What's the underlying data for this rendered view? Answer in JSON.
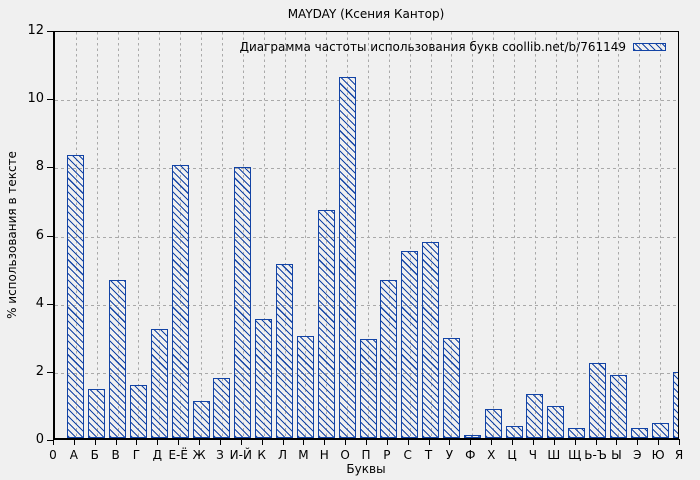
{
  "figure": {
    "background": "#f0f0f0"
  },
  "chart_data": {
    "type": "bar",
    "title": "MAYDAY (Ксения Кантор)",
    "legend_label": "Диаграмма частоты использования букв coollib.net/b/761149",
    "legend_position": "top-right-inside",
    "xlabel": "Буквы",
    "ylabel": "% использования в тексте",
    "origin_tick_label": "0",
    "ylim": [
      0,
      12
    ],
    "yticks": [
      0,
      2,
      4,
      6,
      8,
      10,
      12
    ],
    "grid": "dashed",
    "categories": [
      "А",
      "Б",
      "В",
      "Г",
      "Д",
      "Е-Ё",
      "Ж",
      "З",
      "И-Й",
      "К",
      "Л",
      "М",
      "Н",
      "О",
      "П",
      "Р",
      "С",
      "Т",
      "У",
      "Ф",
      "Х",
      "Ц",
      "Ч",
      "Ш",
      "Щ",
      "Ь-Ъ",
      "Ы",
      "Э",
      "Ю",
      "Я"
    ],
    "values": [
      8.3,
      1.45,
      4.65,
      1.55,
      3.2,
      8.0,
      1.1,
      1.75,
      7.95,
      3.5,
      5.1,
      3.0,
      6.7,
      10.6,
      2.9,
      4.65,
      5.5,
      5.75,
      2.95,
      0.1,
      0.85,
      0.35,
      1.3,
      0.95,
      0.3,
      2.2,
      1.85,
      0.3,
      0.45,
      1.95
    ],
    "colors": {
      "bar_outline": "#1243a5",
      "grid": "#a9a9a9",
      "axis": "#000000",
      "text": "#000000",
      "background": "#f0f0f0"
    }
  }
}
